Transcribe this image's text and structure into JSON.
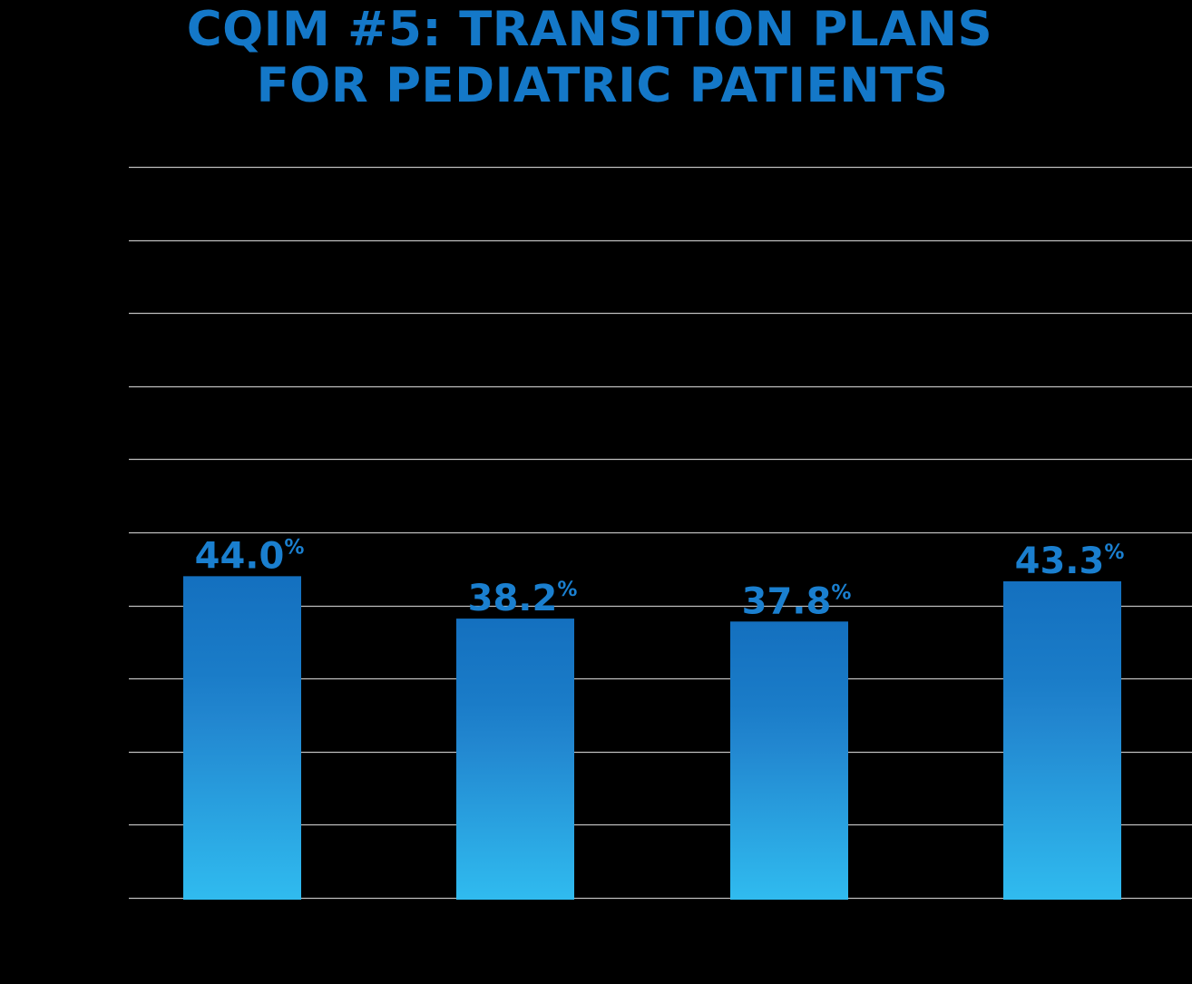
{
  "header": {
    "title_line_1": "CQIM #5: TRANSITION PLANS",
    "title_line_2": "FOR PEDIATRIC PATIENTS"
  },
  "colors": {
    "background": "#000000",
    "title": "#1478c8",
    "label": "#1a7fcf",
    "bar_top": "#1470bf",
    "bar_bottom": "#30bbef",
    "grid": "#bfbfbf"
  },
  "chart_data": {
    "type": "bar",
    "title": "CQIM #5: TRANSITION PLANS FOR PEDIATRIC PATIENTS",
    "categories": [
      "",
      "",
      "",
      ""
    ],
    "values": [
      44.0,
      38.2,
      37.8,
      43.3
    ],
    "data_labels": [
      "44.0%",
      "38.2%",
      "37.8%",
      "43.3%"
    ],
    "ylim": [
      0,
      100
    ],
    "ytick_step": 10,
    "grid": true,
    "xlabel": "",
    "ylabel": ""
  }
}
